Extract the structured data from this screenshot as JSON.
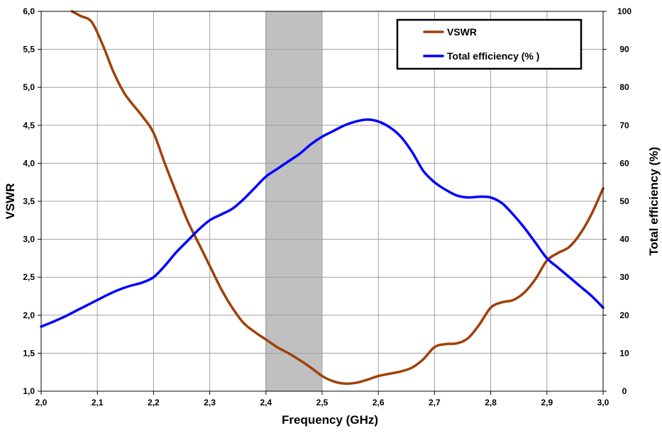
{
  "chart_data": {
    "type": "line",
    "title": "",
    "xlabel": "Frequency (GHz)",
    "ylabel_left": "VSWR",
    "ylabel_right": "Total efficiency (%)",
    "xlim": [
      2.0,
      3.0
    ],
    "ylim_left": [
      1.0,
      6.0
    ],
    "ylim_right": [
      0,
      100
    ],
    "x_ticks": [
      2.0,
      2.1,
      2.2,
      2.3,
      2.4,
      2.5,
      2.6,
      2.7,
      2.8,
      2.9,
      3.0
    ],
    "x_tick_labels": [
      "2,0",
      "2,1",
      "2,2",
      "2,3",
      "2,4",
      "2,5",
      "2,6",
      "2,7",
      "2,8",
      "2,9",
      "3,0"
    ],
    "y_left_ticks": [
      1.0,
      1.5,
      2.0,
      2.5,
      3.0,
      3.5,
      4.0,
      4.5,
      5.0,
      5.5,
      6.0
    ],
    "y_left_tick_labels": [
      "1,0",
      "1,5",
      "2,0",
      "2,5",
      "3,0",
      "3,5",
      "4,0",
      "4,5",
      "5,0",
      "5,5",
      "6,0"
    ],
    "y_right_ticks": [
      0,
      10,
      20,
      30,
      40,
      50,
      60,
      70,
      80,
      90,
      100
    ],
    "y_right_tick_labels": [
      "0",
      "10",
      "20",
      "30",
      "40",
      "50",
      "60",
      "70",
      "80",
      "90",
      "100"
    ],
    "grid": true,
    "legend_position": "top-right",
    "shaded_band": {
      "x_start": 2.4,
      "x_end": 2.5,
      "color": "#c0c0c0"
    },
    "series": [
      {
        "name": "VSWR",
        "axis": "left",
        "color": "#a0400a",
        "x": [
          2.055,
          2.07,
          2.09,
          2.11,
          2.13,
          2.15,
          2.18,
          2.2,
          2.22,
          2.24,
          2.26,
          2.28,
          2.3,
          2.32,
          2.34,
          2.36,
          2.38,
          2.4,
          2.42,
          2.44,
          2.46,
          2.48,
          2.5,
          2.52,
          2.54,
          2.56,
          2.58,
          2.6,
          2.62,
          2.64,
          2.66,
          2.68,
          2.7,
          2.72,
          2.74,
          2.76,
          2.78,
          2.8,
          2.82,
          2.84,
          2.86,
          2.88,
          2.9,
          2.92,
          2.94,
          2.96,
          2.98,
          3.0
        ],
        "y": [
          6.0,
          5.94,
          5.86,
          5.55,
          5.18,
          4.9,
          4.62,
          4.4,
          4.0,
          3.62,
          3.25,
          2.95,
          2.65,
          2.35,
          2.1,
          1.9,
          1.78,
          1.68,
          1.58,
          1.5,
          1.41,
          1.31,
          1.2,
          1.13,
          1.1,
          1.11,
          1.15,
          1.2,
          1.23,
          1.26,
          1.31,
          1.42,
          1.58,
          1.62,
          1.63,
          1.7,
          1.88,
          2.1,
          2.17,
          2.2,
          2.3,
          2.48,
          2.72,
          2.82,
          2.9,
          3.08,
          3.34,
          3.67
        ]
      },
      {
        "name": "Total efficiency (% )",
        "axis": "right",
        "color": "#0000ff",
        "x": [
          2.0,
          2.02,
          2.04,
          2.06,
          2.08,
          2.1,
          2.12,
          2.14,
          2.16,
          2.18,
          2.2,
          2.22,
          2.24,
          2.26,
          2.28,
          2.3,
          2.32,
          2.34,
          2.36,
          2.38,
          2.4,
          2.42,
          2.44,
          2.46,
          2.48,
          2.5,
          2.52,
          2.54,
          2.56,
          2.58,
          2.6,
          2.62,
          2.64,
          2.66,
          2.68,
          2.7,
          2.72,
          2.74,
          2.76,
          2.78,
          2.8,
          2.82,
          2.84,
          2.86,
          2.88,
          2.9,
          2.92,
          2.94,
          2.96,
          2.98,
          3.0
        ],
        "y": [
          17.0,
          18.2,
          19.5,
          21.0,
          22.5,
          24.0,
          25.5,
          26.8,
          27.8,
          28.6,
          30.0,
          33.0,
          36.5,
          39.5,
          42.5,
          45.0,
          46.5,
          48.0,
          50.5,
          53.5,
          56.5,
          58.5,
          60.5,
          62.5,
          65.0,
          67.0,
          68.5,
          70.0,
          71.0,
          71.5,
          71.0,
          69.5,
          67.0,
          63.0,
          58.0,
          55.0,
          53.0,
          51.5,
          51.0,
          51.2,
          51.0,
          49.5,
          46.5,
          43.0,
          39.0,
          35.0,
          32.5,
          30.0,
          27.5,
          25.0,
          22.0
        ]
      }
    ]
  }
}
